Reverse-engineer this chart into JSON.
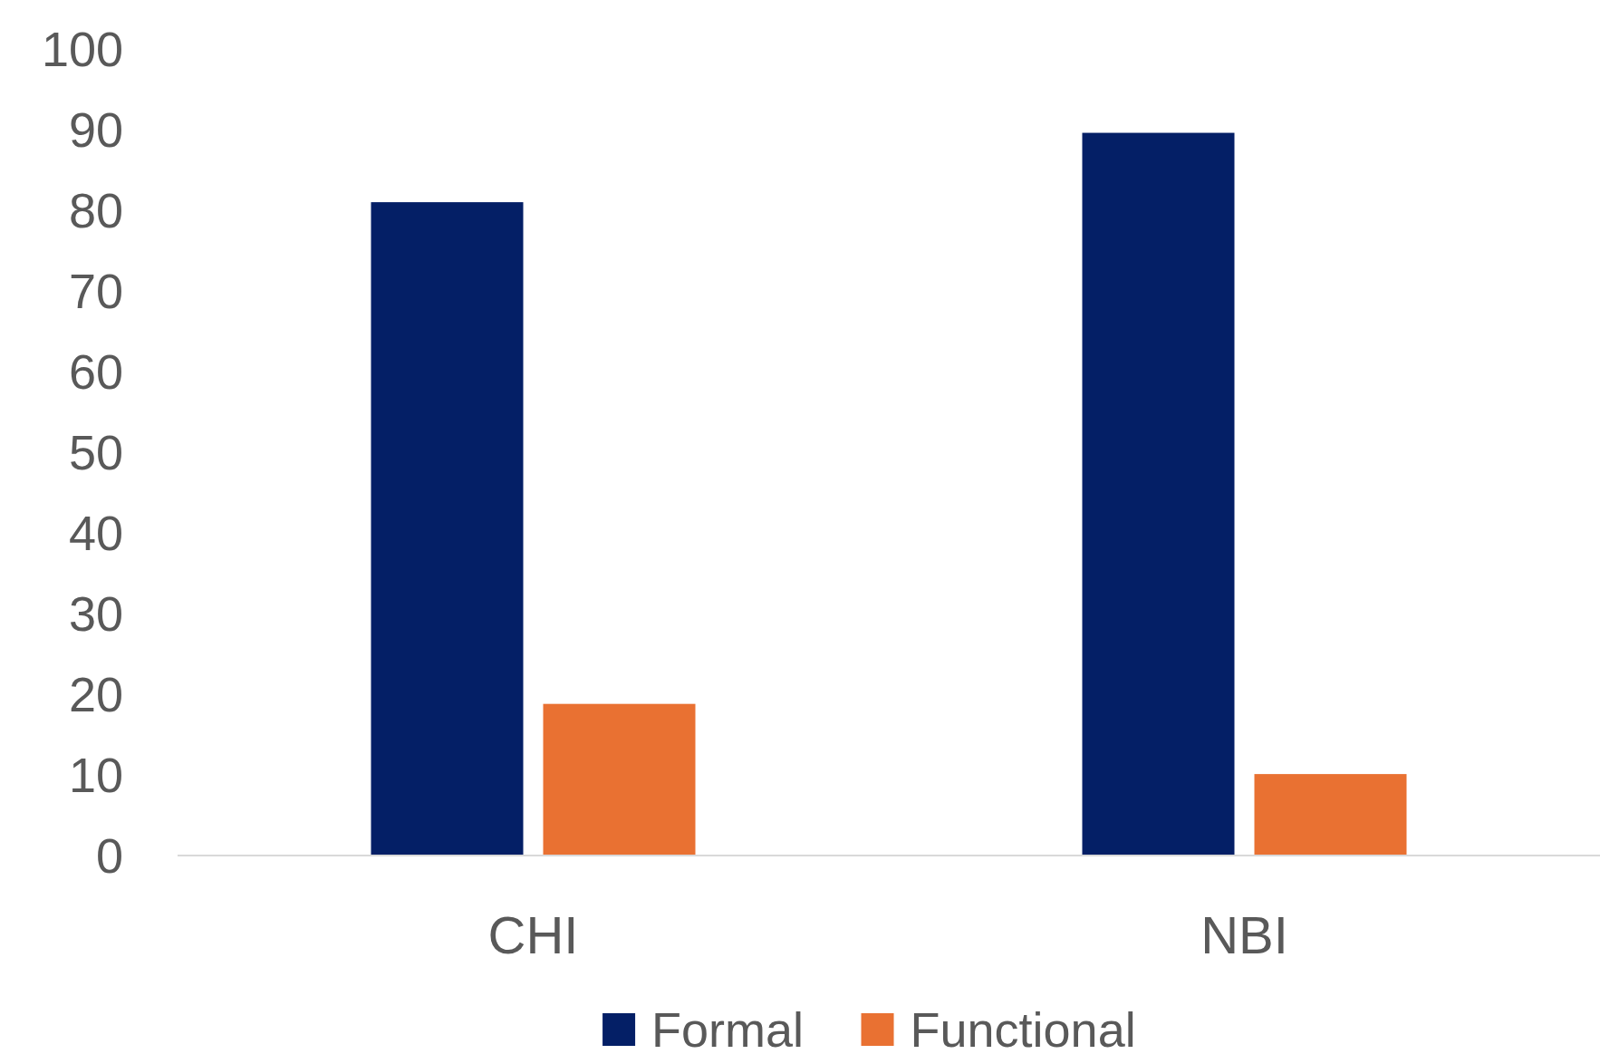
{
  "chart_data": {
    "type": "bar",
    "categories": [
      "CHI",
      "NBI"
    ],
    "series": [
      {
        "name": "Formal",
        "color": "#041f66",
        "values": [
          81,
          89.6
        ]
      },
      {
        "name": "Functional",
        "color": "#e97132",
        "values": [
          18.8,
          10.1
        ]
      }
    ],
    "ylim": [
      0,
      100
    ],
    "yticks": [
      0,
      10,
      20,
      30,
      40,
      50,
      60,
      70,
      80,
      90,
      100
    ],
    "grid": false,
    "legend": "bottom"
  }
}
